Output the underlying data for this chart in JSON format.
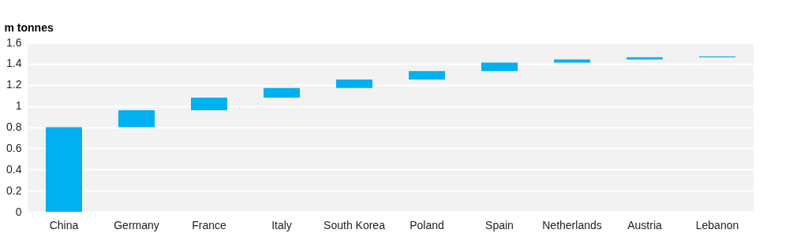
{
  "chart_data": {
    "type": "bar",
    "ylabel": "m tonnes",
    "categories": [
      "China",
      "Germany",
      "France",
      "Italy",
      "South Korea",
      "Poland",
      "Spain",
      "Netherlands",
      "Austria",
      "Lebanon"
    ],
    "values": [
      0.8,
      0.16,
      0.12,
      0.09,
      0.08,
      0.08,
      0.08,
      0.03,
      0.02,
      0.01
    ],
    "base": [
      0,
      0.8,
      0.96,
      1.08,
      1.17,
      1.25,
      1.33,
      1.41,
      1.44,
      1.46
    ],
    "color": "#00b0f0",
    "ylim": [
      0,
      1.6
    ],
    "yticks": [
      0,
      0.2,
      0.4,
      0.6,
      0.8,
      1,
      1.2,
      1.4,
      1.6
    ],
    "grid": "y"
  }
}
